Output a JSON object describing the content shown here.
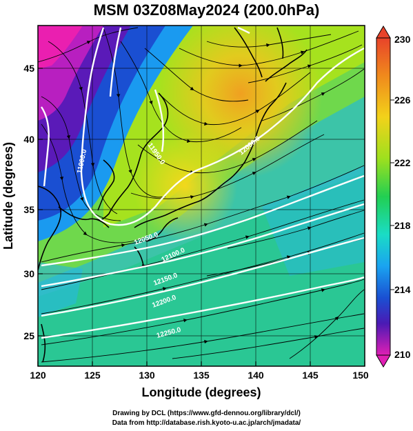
{
  "title": "MSM 03Z08May2024 (200.0hPa)",
  "x_axis": {
    "title": "Longitude (degrees)",
    "ticks": [
      "120",
      "125",
      "130",
      "135",
      "140",
      "145",
      "150"
    ]
  },
  "y_axis": {
    "title": "Latitude  (degrees)",
    "ticks": [
      "25",
      "30",
      "35",
      "40",
      "45"
    ]
  },
  "colorbar": {
    "labels": [
      "230",
      "226",
      "222",
      "218",
      "214",
      "210"
    ],
    "colors": [
      "#ff1f1f",
      "#ff8c1a",
      "#f2d21a",
      "#a6e61a",
      "#1ad24f",
      "#1ae0c8",
      "#1aa3f0",
      "#1a4fd2",
      "#3a1ab4",
      "#8a1ac8",
      "#ff1fb4"
    ]
  },
  "contour_labels": [
    "11900.0",
    "11950.0",
    "12000.0",
    "12050.0",
    "12100.0",
    "12150.0",
    "12200.0",
    "12250.0"
  ],
  "credit": {
    "line1": "Drawing by DCL (https://www.gfd-dennou.org/library/dcl/)",
    "line2": "Data from http://database.rish.kyoto-u.ac.jp/arch/jmadata/"
  }
}
